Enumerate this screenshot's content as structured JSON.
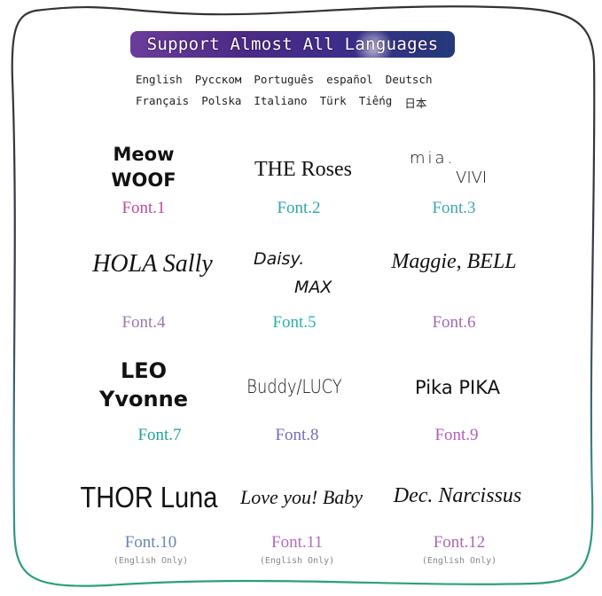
{
  "banner": {
    "title": "Support Almost All Languages"
  },
  "languages": {
    "row1": [
      "English",
      "Pусском",
      "Português",
      "español",
      "Deutsch"
    ],
    "row2": [
      "Français",
      "Polska",
      "Italiano",
      "Türk",
      "Tiếng",
      "日本"
    ]
  },
  "fonts": [
    {
      "sample_lines": [
        "Meow",
        "WOOF"
      ],
      "label": "Font.1",
      "color": "#c04a9a"
    },
    {
      "sample_lines": [
        "THE Roses"
      ],
      "label": "Font.2",
      "color": "#2fa6a6"
    },
    {
      "sample_lines": [
        "mia.",
        "VIVI"
      ],
      "label": "Font.3",
      "color": "#3aa8b5"
    },
    {
      "sample_lines": [
        "HOLA Sally"
      ],
      "label": "Font.4",
      "color": "#9a7ab0"
    },
    {
      "sample_lines": [
        "Daisy.",
        "MAX"
      ],
      "label": "Font.5",
      "color": "#2ab0b0"
    },
    {
      "sample_lines": [
        "Maggie, BELL"
      ],
      "label": "Font.6",
      "color": "#a06ab8"
    },
    {
      "sample_lines": [
        "LEO",
        "Yvonne"
      ],
      "label": "Font.7",
      "color": "#1fa59a"
    },
    {
      "sample_lines": [
        "Buddy/LUCY"
      ],
      "label": "Font.8",
      "color": "#7a6ab8"
    },
    {
      "sample_lines": [
        "Pika PIKA"
      ],
      "label": "Font.9",
      "color": "#b060b8"
    },
    {
      "sample_lines": [
        "THOR Luna"
      ],
      "label": "Font.10",
      "color": "#6a86b8",
      "note": "(English Only)"
    },
    {
      "sample_lines": [
        "Love you! Baby"
      ],
      "label": "Font.11",
      "color": "#b46ac0",
      "note": "(English Only)"
    },
    {
      "sample_lines": [
        "Dec. Narcissus"
      ],
      "label": "Font.12",
      "color": "#a868b0",
      "note": "(English Only)"
    }
  ]
}
